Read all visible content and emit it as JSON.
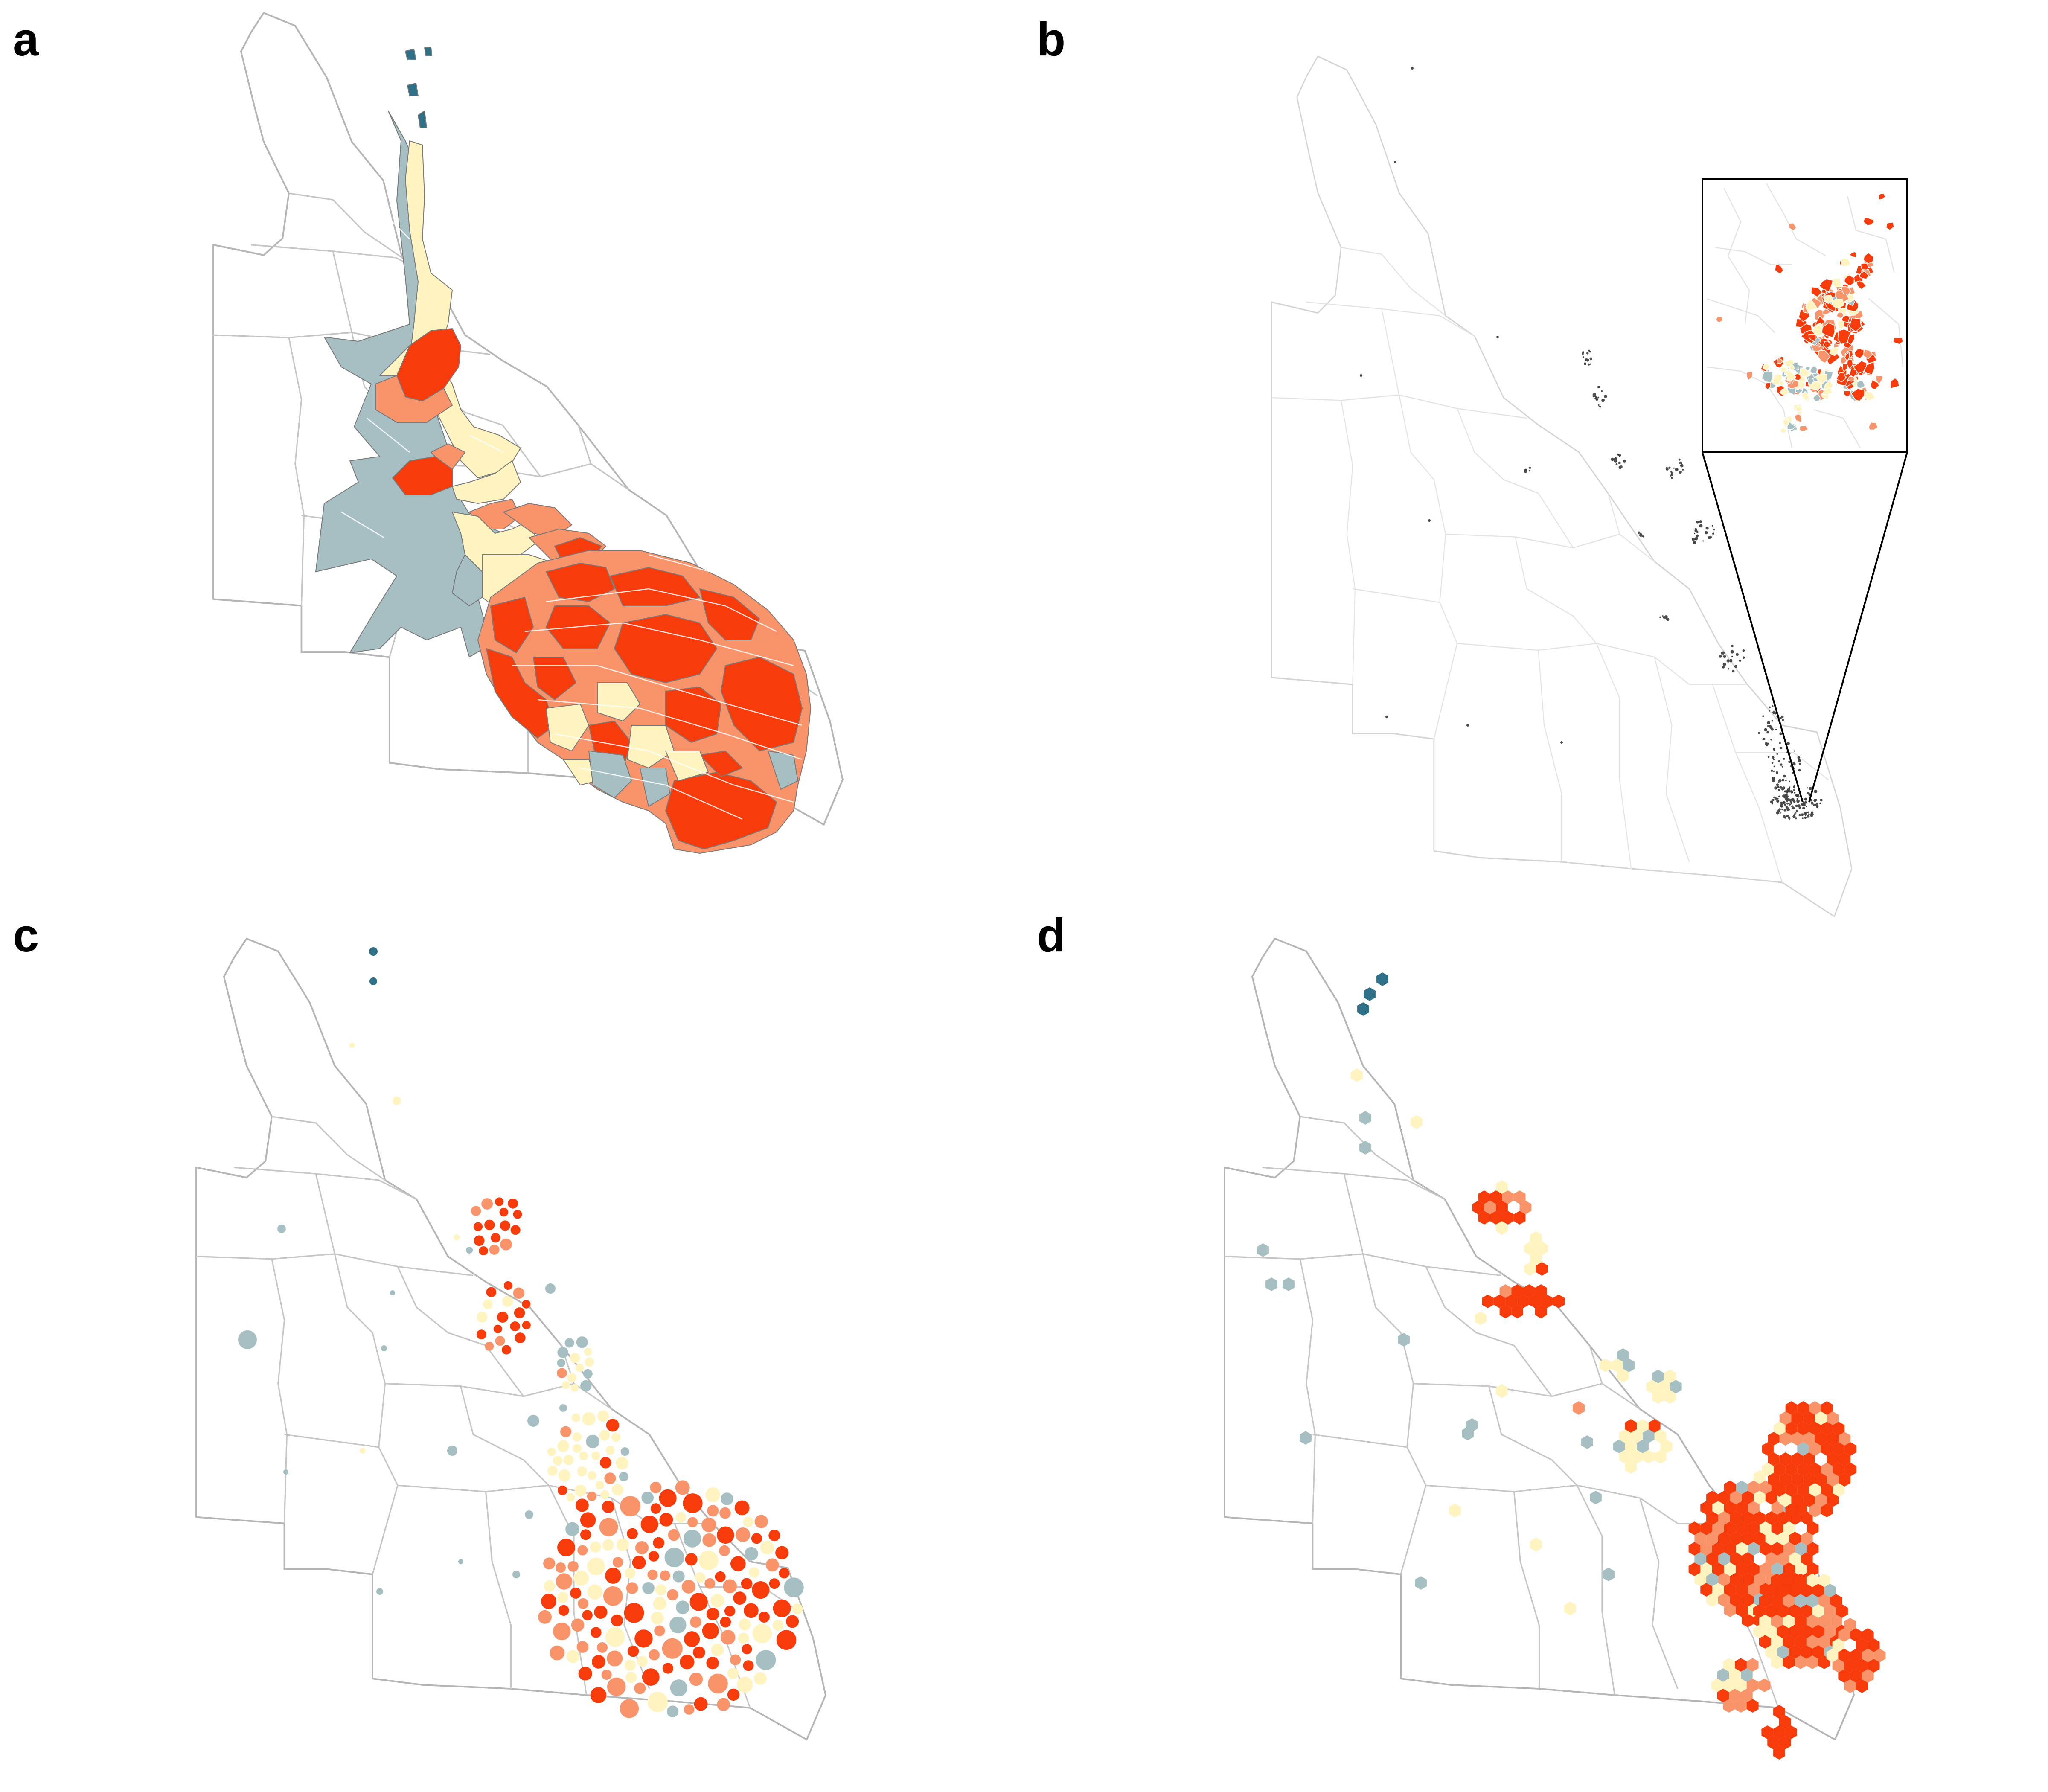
{
  "figure": {
    "panels": [
      {
        "id": "a",
        "label": "a"
      },
      {
        "id": "b",
        "label": "b"
      },
      {
        "id": "c",
        "label": "c"
      },
      {
        "id": "d",
        "label": "d"
      }
    ],
    "colors": {
      "class_1": "#2e7088",
      "class_2": "#a6bfc2",
      "class_3": "#fff3bf",
      "class_4": "#f9936a",
      "class_5": "#f73b0b",
      "boundary": "#b5b5b5",
      "dots": "#4a4a4a"
    },
    "panel_types": {
      "a": "contiguous-cartogram",
      "b": "choropleth-with-inset",
      "c": "dorling-circle-cartogram",
      "d": "hexagon-tile-map"
    }
  }
}
